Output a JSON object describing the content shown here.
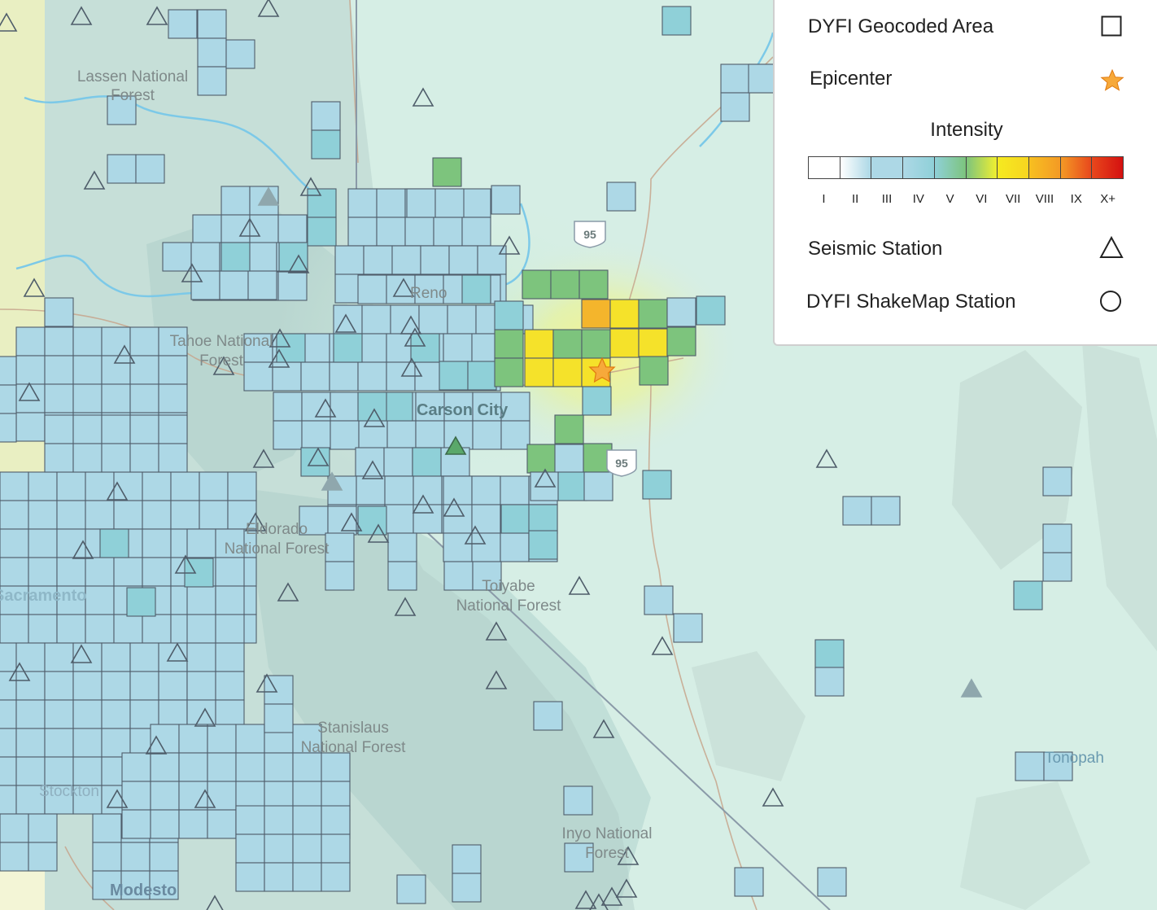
{
  "map": {
    "places": [
      {
        "id": "lassen",
        "lines": [
          "Lassen National",
          "Forest"
        ]
      },
      {
        "id": "tahoe",
        "lines": [
          "Tahoe National",
          "Forest"
        ]
      },
      {
        "id": "eldorado",
        "lines": [
          "Eldorado",
          "National Forest"
        ]
      },
      {
        "id": "toiyabe",
        "lines": [
          "Toiyabe",
          "National Forest"
        ]
      },
      {
        "id": "stanislaus",
        "lines": [
          "Stanislaus",
          "National Forest"
        ]
      },
      {
        "id": "inyo",
        "lines": [
          "Inyo National",
          "Forest"
        ]
      },
      {
        "id": "reno",
        "lines": [
          "Reno"
        ]
      },
      {
        "id": "carson",
        "lines": [
          "Carson City"
        ]
      },
      {
        "id": "sacramento",
        "lines": [
          "Sacramento"
        ]
      },
      {
        "id": "stockton",
        "lines": [
          "Stockton"
        ]
      },
      {
        "id": "modesto",
        "lines": [
          "Modesto"
        ]
      },
      {
        "id": "tonopah",
        "lines": [
          "Tonopah"
        ]
      }
    ],
    "highways": [
      "95",
      "95"
    ]
  },
  "colors": {
    "II": "#dff1f7",
    "III": "#add8e6",
    "IV": "#8fd0d8",
    "V": "#7dc47d",
    "VI": "#e4ef3c",
    "VII": "#f5e22a",
    "VIII": "#f4b52c",
    "IX": "#f06a24",
    "X": "#e01a1a",
    "cell_border": "#4f5d6a"
  },
  "legend": {
    "geocoded_label": "DYFI Geocoded Area",
    "epicenter_label": "Epicenter",
    "intensity_title": "Intensity",
    "intensity_ticks": [
      "I",
      "II",
      "III",
      "IV",
      "V",
      "VI",
      "VII",
      "VIII",
      "IX",
      "X+"
    ],
    "seismic_label": "Seismic Station",
    "shakemap_label": "DYFI ShakeMap Station",
    "icons": {
      "geocoded": "square-outline-icon",
      "epicenter": "star-icon",
      "seismic": "triangle-icon",
      "shakemap": "circle-icon"
    }
  }
}
